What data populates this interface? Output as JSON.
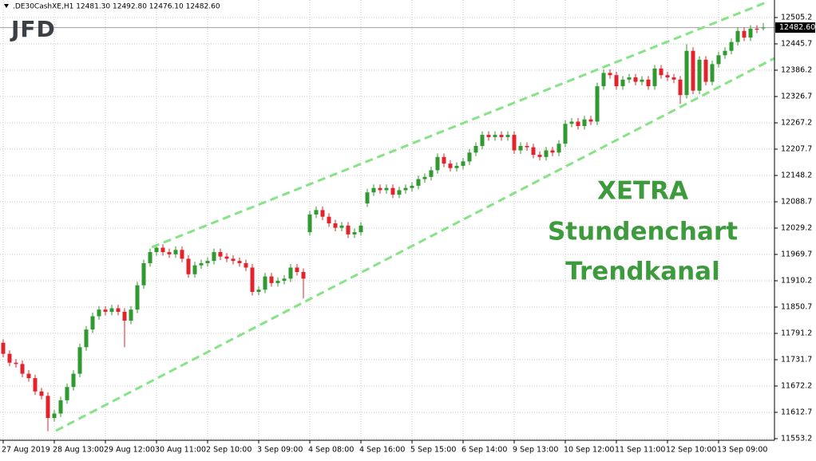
{
  "chart_data": {
    "type": "candlestick",
    "header": ".DE30CashXE,H1  12481.30 12492.80 12476.10 12482.60",
    "logo": "JFD",
    "annotation": [
      "XETRA",
      "Stundenchart",
      "Trendkanal"
    ],
    "up_color": "#2f9a2f",
    "down_color": "#e3222b",
    "grid": true,
    "ylim": [
      11549.6,
      12523.3
    ],
    "yticks": [
      {
        "value": 12505.25,
        "label": "12505.2"
      },
      {
        "value": 12445.75,
        "label": "12445.7"
      },
      {
        "value": 12386.25,
        "label": "12386.2"
      },
      {
        "value": 12326.75,
        "label": "12326.7"
      },
      {
        "value": 12267.25,
        "label": "12267.2"
      },
      {
        "value": 12207.75,
        "label": "12207.7"
      },
      {
        "value": 12148.25,
        "label": "12148.2"
      },
      {
        "value": 12088.75,
        "label": "12088.7"
      },
      {
        "value": 12029.25,
        "label": "12029.2"
      },
      {
        "value": 11969.75,
        "label": "11969.7"
      },
      {
        "value": 11910.25,
        "label": "11910.2"
      },
      {
        "value": 11850.75,
        "label": "11850.7"
      },
      {
        "value": 11791.25,
        "label": "11791.2"
      },
      {
        "value": 11731.75,
        "label": "11731.7"
      },
      {
        "value": 11672.25,
        "label": "11672.2"
      },
      {
        "value": 11612.75,
        "label": "11612.7"
      },
      {
        "value": 11553.25,
        "label": "11553.2"
      }
    ],
    "current_price": {
      "value": 12482.6,
      "label": "12482.60"
    },
    "categories": [
      "27 Aug 2019",
      null,
      null,
      null,
      null,
      null,
      null,
      null,
      "28 Aug 13:00",
      null,
      null,
      null,
      null,
      null,
      null,
      null,
      "29 Aug 12:00",
      null,
      null,
      null,
      null,
      null,
      null,
      null,
      "30 Aug 11:00",
      null,
      null,
      null,
      null,
      null,
      null,
      null,
      "2 Sep 10:00",
      null,
      null,
      null,
      null,
      null,
      null,
      null,
      "3 Sep 09:00",
      null,
      null,
      null,
      null,
      null,
      null,
      null,
      "4 Sep 08:00",
      null,
      null,
      null,
      null,
      null,
      null,
      null,
      "4 Sep 16:00",
      null,
      null,
      null,
      null,
      null,
      null,
      null,
      "5 Sep 15:00",
      null,
      null,
      null,
      null,
      null,
      null,
      null,
      "6 Sep 14:00",
      null,
      null,
      null,
      null,
      null,
      null,
      null,
      "9 Sep 13:00",
      null,
      null,
      null,
      null,
      null,
      null,
      null,
      "10 Sep 12:00",
      null,
      null,
      null,
      null,
      null,
      null,
      null,
      "11 Sep 11:00",
      null,
      null,
      null,
      null,
      null,
      null,
      null,
      "12 Sep 10:00",
      null,
      null,
      null,
      null,
      null,
      null,
      null,
      "13 Sep 09:00",
      null,
      null,
      null,
      null,
      null,
      null,
      null
    ],
    "open": [
      11770,
      11745,
      11725,
      11722,
      11700,
      11690,
      11660,
      11650,
      11600,
      11610,
      11640,
      11670,
      11700,
      11760,
      11800,
      11830,
      11845,
      11840,
      11848,
      11840,
      11820,
      11845,
      11900,
      11950,
      11975,
      11985,
      11975,
      11970,
      11980,
      11960,
      11925,
      11945,
      11950,
      11955,
      11975,
      11965,
      11960,
      11955,
      11950,
      11940,
      11885,
      11890,
      11920,
      11905,
      11910,
      11915,
      11940,
      11930,
      12020,
      12060,
      12070,
      12055,
      12040,
      12030,
      12035,
      12015,
      12020,
      12085,
      12110,
      12120,
      12115,
      12120,
      12105,
      12115,
      12120,
      12125,
      12140,
      12145,
      12160,
      12190,
      12175,
      12165,
      12170,
      12180,
      12200,
      12215,
      12240,
      12235,
      12240,
      12235,
      12240,
      12205,
      12215,
      12212,
      12195,
      12190,
      12205,
      12200,
      12220,
      12265,
      12270,
      12260,
      12275,
      12270,
      12350,
      12380,
      12375,
      12350,
      12365,
      12370,
      12360,
      12365,
      12350,
      12390,
      12375,
      12370,
      12365,
      12330,
      12430,
      12340,
      12410,
      12360,
      12400,
      12420,
      12430,
      12450,
      12475,
      12460,
      12480,
      12481.3
    ],
    "high": [
      11778,
      11753,
      11733,
      11730,
      11708,
      11698,
      11668,
      11658,
      11618,
      11648,
      11678,
      11708,
      11768,
      11808,
      11838,
      11853,
      11853,
      11856,
      11856,
      11848,
      11853,
      11908,
      11958,
      11983,
      11993,
      11993,
      11983,
      11988,
      11988,
      11968,
      11953,
      11958,
      11963,
      11983,
      11983,
      11973,
      11968,
      11963,
      11958,
      11948,
      11898,
      11928,
      11928,
      11918,
      11923,
      11948,
      11948,
      11938,
      12068,
      12078,
      12078,
      12063,
      12048,
      12043,
      12043,
      12028,
      12043,
      12118,
      12128,
      12128,
      12128,
      12128,
      12123,
      12128,
      12133,
      12148,
      12153,
      12168,
      12198,
      12198,
      12183,
      12178,
      12188,
      12208,
      12223,
      12248,
      12248,
      12248,
      12248,
      12248,
      12248,
      12223,
      12223,
      12220,
      12203,
      12213,
      12213,
      12228,
      12273,
      12278,
      12278,
      12283,
      12283,
      12358,
      12388,
      12388,
      12383,
      12373,
      12378,
      12378,
      12373,
      12373,
      12398,
      12398,
      12383,
      12378,
      12373,
      12445,
      12438,
      12418,
      12418,
      12408,
      12428,
      12438,
      12458,
      12483,
      12483,
      12488,
      12488,
      12492.8
    ],
    "low": [
      11737,
      11717,
      11714,
      11692,
      11682,
      11652,
      11642,
      11570,
      11592,
      11602,
      11632,
      11662,
      11692,
      11752,
      11792,
      11822,
      11832,
      11832,
      11832,
      11760,
      11812,
      11837,
      11892,
      11942,
      11967,
      11967,
      11962,
      11962,
      11952,
      11917,
      11917,
      11937,
      11942,
      11947,
      11957,
      11952,
      11947,
      11942,
      11932,
      11877,
      11877,
      11882,
      11897,
      11897,
      11902,
      11907,
      11922,
      11870,
      12012,
      12052,
      12047,
      12032,
      12022,
      12022,
      12007,
      12007,
      12012,
      12077,
      12102,
      12107,
      12107,
      12097,
      12097,
      12107,
      12112,
      12117,
      12132,
      12137,
      12152,
      12167,
      12157,
      12157,
      12162,
      12172,
      12192,
      12207,
      12227,
      12227,
      12227,
      12227,
      12197,
      12197,
      12204,
      12187,
      12182,
      12182,
      12192,
      12192,
      12212,
      12257,
      12252,
      12252,
      12262,
      12262,
      12342,
      12367,
      12342,
      12342,
      12357,
      12352,
      12352,
      12342,
      12342,
      12367,
      12362,
      12357,
      12310,
      12322,
      12332,
      12332,
      12352,
      12352,
      12392,
      12412,
      12422,
      12442,
      12452,
      12452,
      12470,
      12476.1
    ],
    "close": [
      11745,
      11725,
      11722,
      11700,
      11690,
      11660,
      11650,
      11600,
      11610,
      11640,
      11670,
      11700,
      11760,
      11800,
      11830,
      11845,
      11840,
      11848,
      11840,
      11820,
      11845,
      11900,
      11950,
      11975,
      11985,
      11975,
      11970,
      11980,
      11960,
      11925,
      11945,
      11950,
      11955,
      11975,
      11965,
      11960,
      11955,
      11950,
      11940,
      11885,
      11890,
      11920,
      11905,
      11910,
      11915,
      11940,
      11930,
      11915,
      12060,
      12070,
      12055,
      12040,
      12030,
      12035,
      12015,
      12020,
      12035,
      12110,
      12120,
      12115,
      12120,
      12105,
      12115,
      12120,
      12125,
      12140,
      12145,
      12160,
      12190,
      12175,
      12165,
      12170,
      12180,
      12200,
      12215,
      12240,
      12235,
      12240,
      12235,
      12240,
      12205,
      12215,
      12212,
      12195,
      12190,
      12205,
      12200,
      12220,
      12265,
      12270,
      12260,
      12275,
      12270,
      12350,
      12380,
      12375,
      12350,
      12365,
      12370,
      12360,
      12365,
      12350,
      12390,
      12375,
      12370,
      12365,
      12330,
      12430,
      12340,
      12410,
      12360,
      12400,
      12420,
      12430,
      12450,
      12475,
      12460,
      12480,
      12478,
      12482.6
    ]
  }
}
